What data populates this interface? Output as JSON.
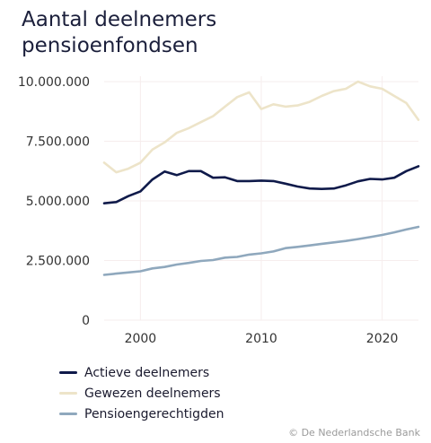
{
  "header": {
    "title": "Aantal deelnemers\npensioenfondsen"
  },
  "source": "© De Nederlandsche Bank",
  "chart_data": {
    "type": "line",
    "title": "Aantal deelnemers pensioenfondsen",
    "xlabel": "",
    "ylabel": "",
    "xlim": [
      1997,
      2023
    ],
    "ylim": [
      0,
      10000000
    ],
    "xticks": [
      2000,
      2010,
      2020
    ],
    "xtick_labels": [
      "2000",
      "2010",
      "2020"
    ],
    "yticks": [
      0,
      2500000,
      5000000,
      7500000,
      10000000
    ],
    "ytick_labels": [
      "0",
      "2.500.000",
      "5.000.000",
      "7.500.000",
      "10.000.000"
    ],
    "grid": true,
    "legend_position": "bottom-left",
    "x": [
      1997,
      1998,
      1999,
      2000,
      2001,
      2002,
      2003,
      2004,
      2005,
      2006,
      2007,
      2008,
      2009,
      2010,
      2011,
      2012,
      2013,
      2014,
      2015,
      2016,
      2017,
      2018,
      2019,
      2020,
      2021,
      2022,
      2023
    ],
    "series": [
      {
        "name": "Actieve deelnemers",
        "color": "#0f1a4a",
        "values": [
          4900000,
          4950000,
          5200000,
          5400000,
          5900000,
          6230000,
          6080000,
          6250000,
          6250000,
          5970000,
          5990000,
          5830000,
          5830000,
          5850000,
          5830000,
          5720000,
          5600000,
          5520000,
          5500000,
          5520000,
          5650000,
          5820000,
          5920000,
          5900000,
          5970000,
          6250000,
          6450000
        ]
      },
      {
        "name": "Gewezen deelnemers",
        "color": "#ede4c9",
        "values": [
          6600000,
          6200000,
          6350000,
          6600000,
          7150000,
          7450000,
          7850000,
          8050000,
          8300000,
          8550000,
          8950000,
          9350000,
          9550000,
          8850000,
          9050000,
          8950000,
          9000000,
          9150000,
          9400000,
          9600000,
          9700000,
          10000000,
          9800000,
          9700000,
          9400000,
          9100000,
          8400000
        ]
      },
      {
        "name": "Pensioengerechtigden",
        "color": "#8fa8bd",
        "values": [
          1900000,
          1950000,
          2000000,
          2050000,
          2170000,
          2230000,
          2330000,
          2400000,
          2480000,
          2520000,
          2620000,
          2650000,
          2750000,
          2800000,
          2880000,
          3020000,
          3070000,
          3130000,
          3200000,
          3260000,
          3320000,
          3400000,
          3480000,
          3570000,
          3680000,
          3800000,
          3910000
        ]
      }
    ]
  }
}
